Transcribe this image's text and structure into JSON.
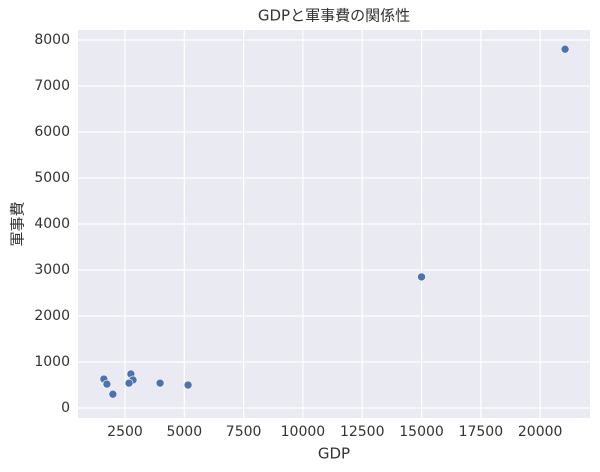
{
  "chart_data": {
    "type": "scatter",
    "title": "GDPと軍事費の関係性",
    "x_label": "GDP",
    "y_label": "軍事費",
    "color": "#4c72b0",
    "x": [
      21050,
      15000,
      2750,
      2840,
      2670,
      1610,
      1740,
      1990,
      3980,
      5160
    ],
    "y": [
      7800,
      2850,
      740,
      610,
      540,
      630,
      520,
      300,
      540,
      500
    ],
    "xlim": [
      520,
      22100
    ],
    "ylim": [
      -217,
      8217
    ],
    "xticks": [
      2500,
      5000,
      7500,
      10000,
      12500,
      15000,
      17500,
      20000
    ],
    "yticks": [
      0,
      1000,
      2000,
      3000,
      4000,
      5000,
      6000,
      7000,
      8000
    ],
    "grid": true
  }
}
